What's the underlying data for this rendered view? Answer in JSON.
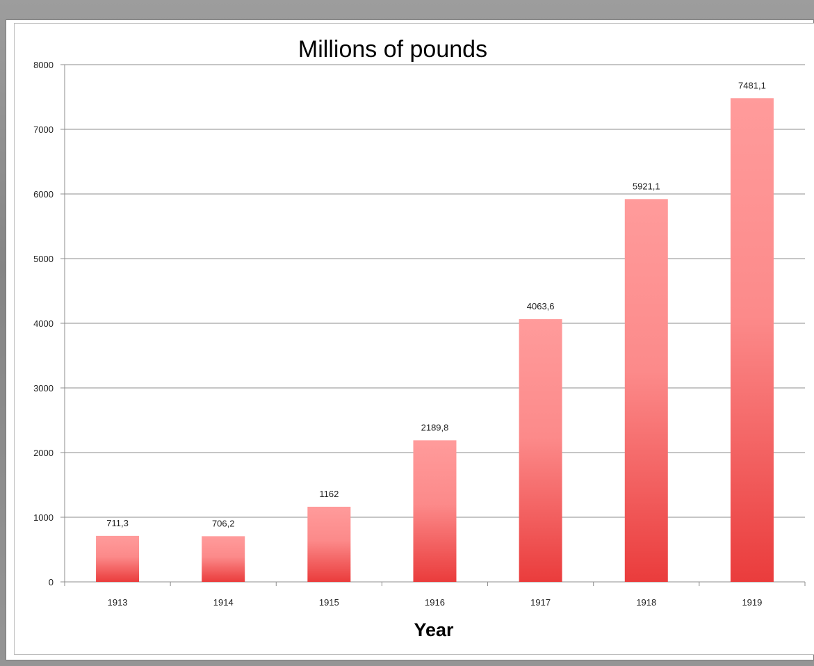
{
  "chart_data": {
    "type": "bar",
    "title": "Millions of pounds",
    "xlabel": "Year",
    "ylabel": "",
    "categories": [
      "1913",
      "1914",
      "1915",
      "1916",
      "1917",
      "1918",
      "1919"
    ],
    "values": [
      711.3,
      706.2,
      1162,
      2189.8,
      4063.6,
      5921.1,
      7481.1
    ],
    "data_labels": [
      "711,3",
      "706,2",
      "1162",
      "2189,8",
      "4063,6",
      "5921,1",
      "7481,1"
    ],
    "ylim": [
      0,
      8000
    ],
    "yticks": [
      "0",
      "1000",
      "2000",
      "3000",
      "4000",
      "5000",
      "6000",
      "7000",
      "8000"
    ],
    "grid": true,
    "legend": "none",
    "colors": {
      "bar_top": "#ff9b9b",
      "bar_bottom": "#ea3c3c",
      "grid": "#8c8c8c",
      "axis": "#8c8c8c"
    }
  }
}
